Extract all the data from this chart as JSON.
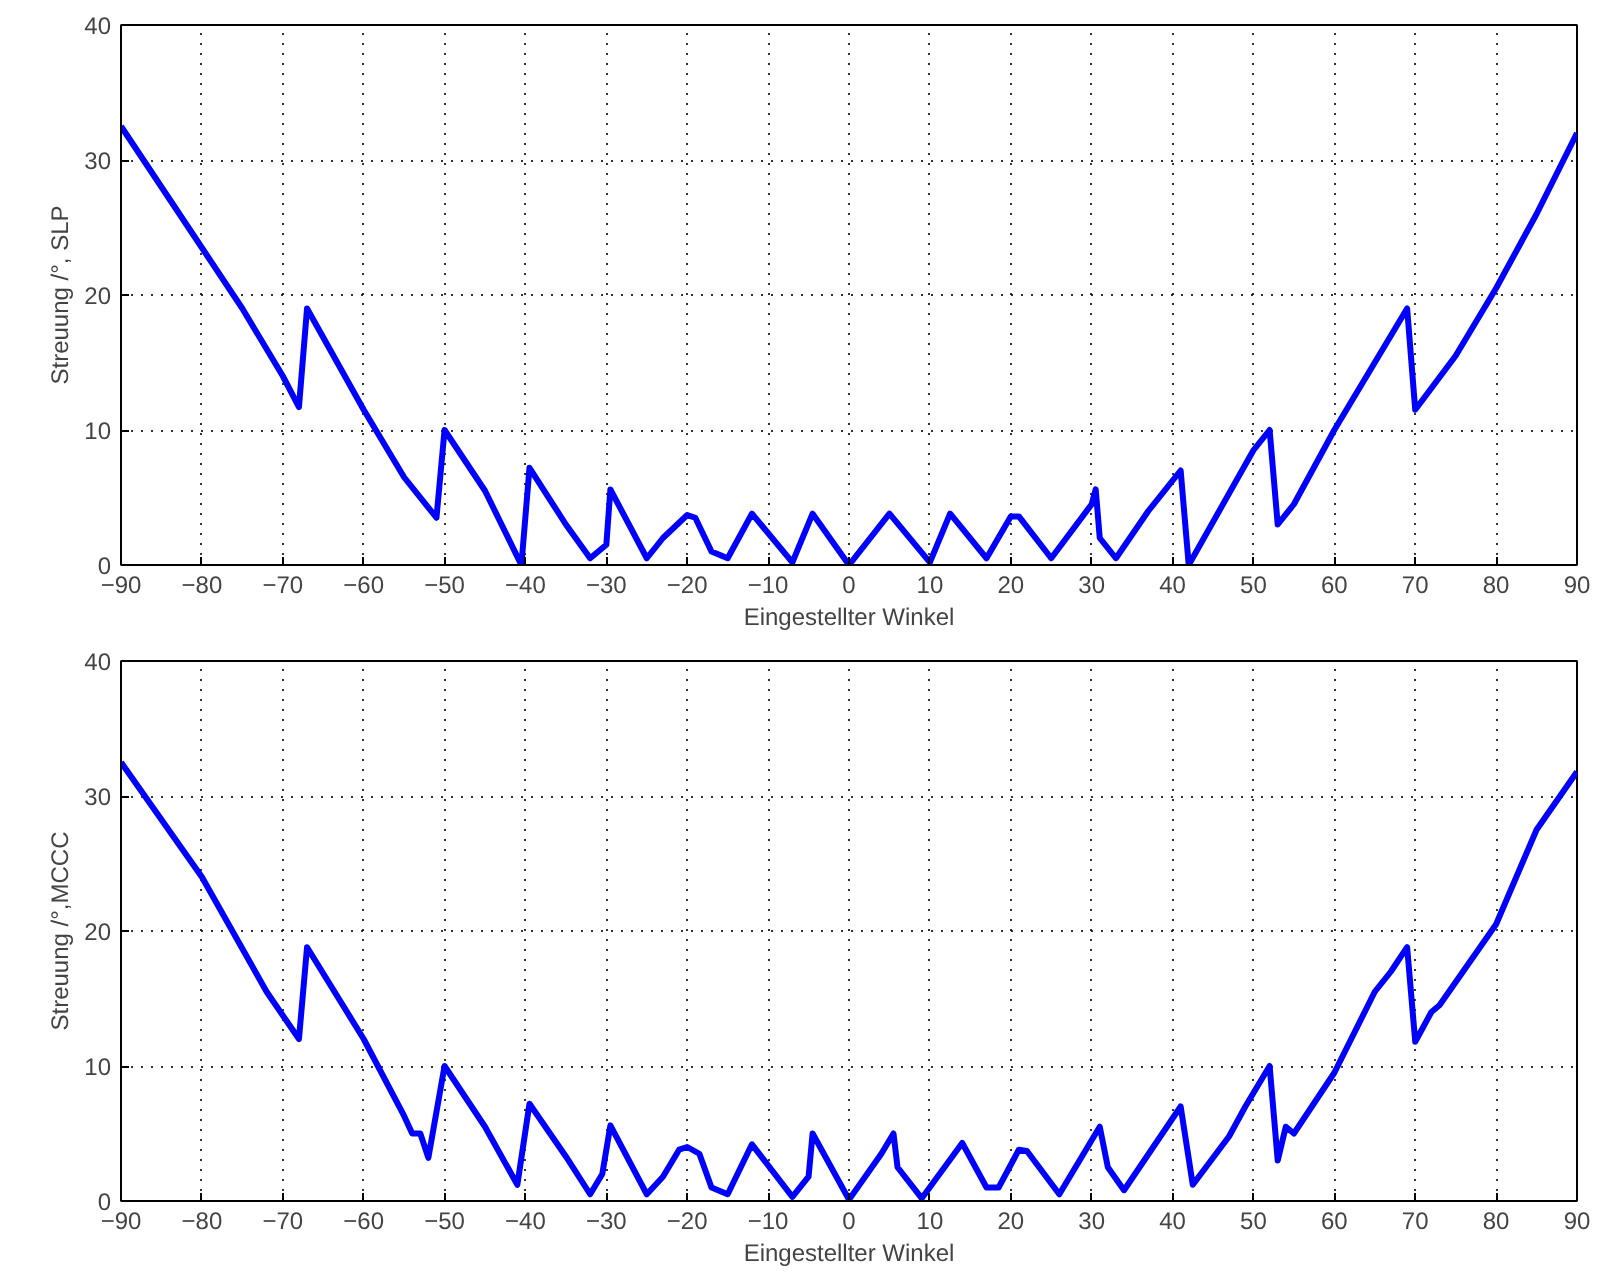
{
  "chart_data": [
    {
      "type": "line",
      "xlabel": "Eingestellter Winkel",
      "ylabel": "Streuung /°, SLP",
      "xlim": [
        -90,
        90
      ],
      "ylim": [
        0,
        40
      ],
      "xticks": [
        -90,
        -80,
        -70,
        -60,
        -50,
        -40,
        -30,
        -20,
        -10,
        0,
        10,
        20,
        30,
        40,
        50,
        60,
        70,
        80,
        90
      ],
      "yticks": [
        0,
        10,
        20,
        30,
        40
      ],
      "grid": true,
      "line_style": "solid",
      "series": [
        {
          "color": "#0000ff",
          "x": [
            -90,
            -80,
            -75,
            -70,
            -68,
            -67,
            -60,
            -55,
            -51,
            -50,
            -45,
            -40.5,
            -39.5,
            -35,
            -32,
            -30,
            -29.5,
            -25,
            -23,
            -20,
            -19,
            -17,
            -15,
            -12,
            -7,
            -4.5,
            0,
            5,
            10,
            12.5,
            17,
            20,
            21,
            25,
            30,
            30.5,
            31,
            33,
            37,
            41,
            42,
            50,
            52,
            53,
            55,
            60,
            68,
            69,
            70,
            75,
            80,
            85,
            90
          ],
          "values": [
            32.5,
            23.5,
            19,
            14,
            11.7,
            19,
            11.5,
            6.5,
            3.5,
            10,
            5.5,
            0,
            7.2,
            3,
            0.5,
            1.5,
            5.6,
            0.5,
            2,
            3.7,
            3.5,
            1,
            0.5,
            3.8,
            0.2,
            3.8,
            0,
            3.8,
            0.2,
            3.8,
            0.5,
            3.6,
            3.6,
            0.5,
            4.5,
            5.6,
            2,
            0.5,
            4,
            7,
            0,
            8.5,
            10,
            3,
            4.5,
            10,
            18,
            19,
            11.5,
            15.5,
            20.5,
            26,
            32
          ]
        }
      ]
    },
    {
      "type": "line",
      "xlabel": "Eingestellter Winkel",
      "ylabel": "Streuung /°,MCCC",
      "xlim": [
        -90,
        90
      ],
      "ylim": [
        0,
        40
      ],
      "xticks": [
        -90,
        -80,
        -70,
        -60,
        -50,
        -40,
        -30,
        -20,
        -10,
        0,
        10,
        20,
        30,
        40,
        50,
        60,
        70,
        80,
        90
      ],
      "yticks": [
        0,
        10,
        20,
        30,
        40
      ],
      "grid": true,
      "line_style": "solid",
      "series": [
        {
          "color": "#0000ff",
          "x": [
            -90,
            -80,
            -72,
            -68,
            -67,
            -60,
            -55,
            -54,
            -53,
            -52,
            -50,
            -45,
            -41,
            -39.5,
            -35,
            -32,
            -30.5,
            -29.5,
            -25,
            -23,
            -21,
            -20,
            -18.5,
            -17,
            -15,
            -12,
            -7,
            -5,
            -4.5,
            0,
            4,
            5.5,
            6,
            9,
            14,
            17,
            18.5,
            21,
            22,
            26,
            31,
            32,
            34,
            41,
            42.5,
            47,
            49,
            52,
            53,
            54,
            55,
            60,
            65,
            67,
            69,
            70,
            72,
            73,
            80,
            85,
            90
          ],
          "values": [
            32.5,
            24,
            15.5,
            12,
            18.8,
            12,
            6.3,
            5,
            5,
            3.2,
            10,
            5.5,
            1.2,
            7.2,
            3.3,
            0.5,
            2,
            5.6,
            0.5,
            1.8,
            3.8,
            4,
            3.5,
            1,
            0.5,
            4.2,
            0.3,
            1.8,
            5,
            0.1,
            3.5,
            5,
            2.5,
            0.2,
            4.3,
            1,
            1,
            3.8,
            3.7,
            0.5,
            5.5,
            2.5,
            0.8,
            7,
            1.2,
            4.8,
            7,
            10,
            3,
            5.5,
            5,
            9.5,
            15.5,
            17,
            18.8,
            11.8,
            14,
            14.5,
            20.5,
            27.5,
            31.8
          ]
        }
      ]
    }
  ]
}
